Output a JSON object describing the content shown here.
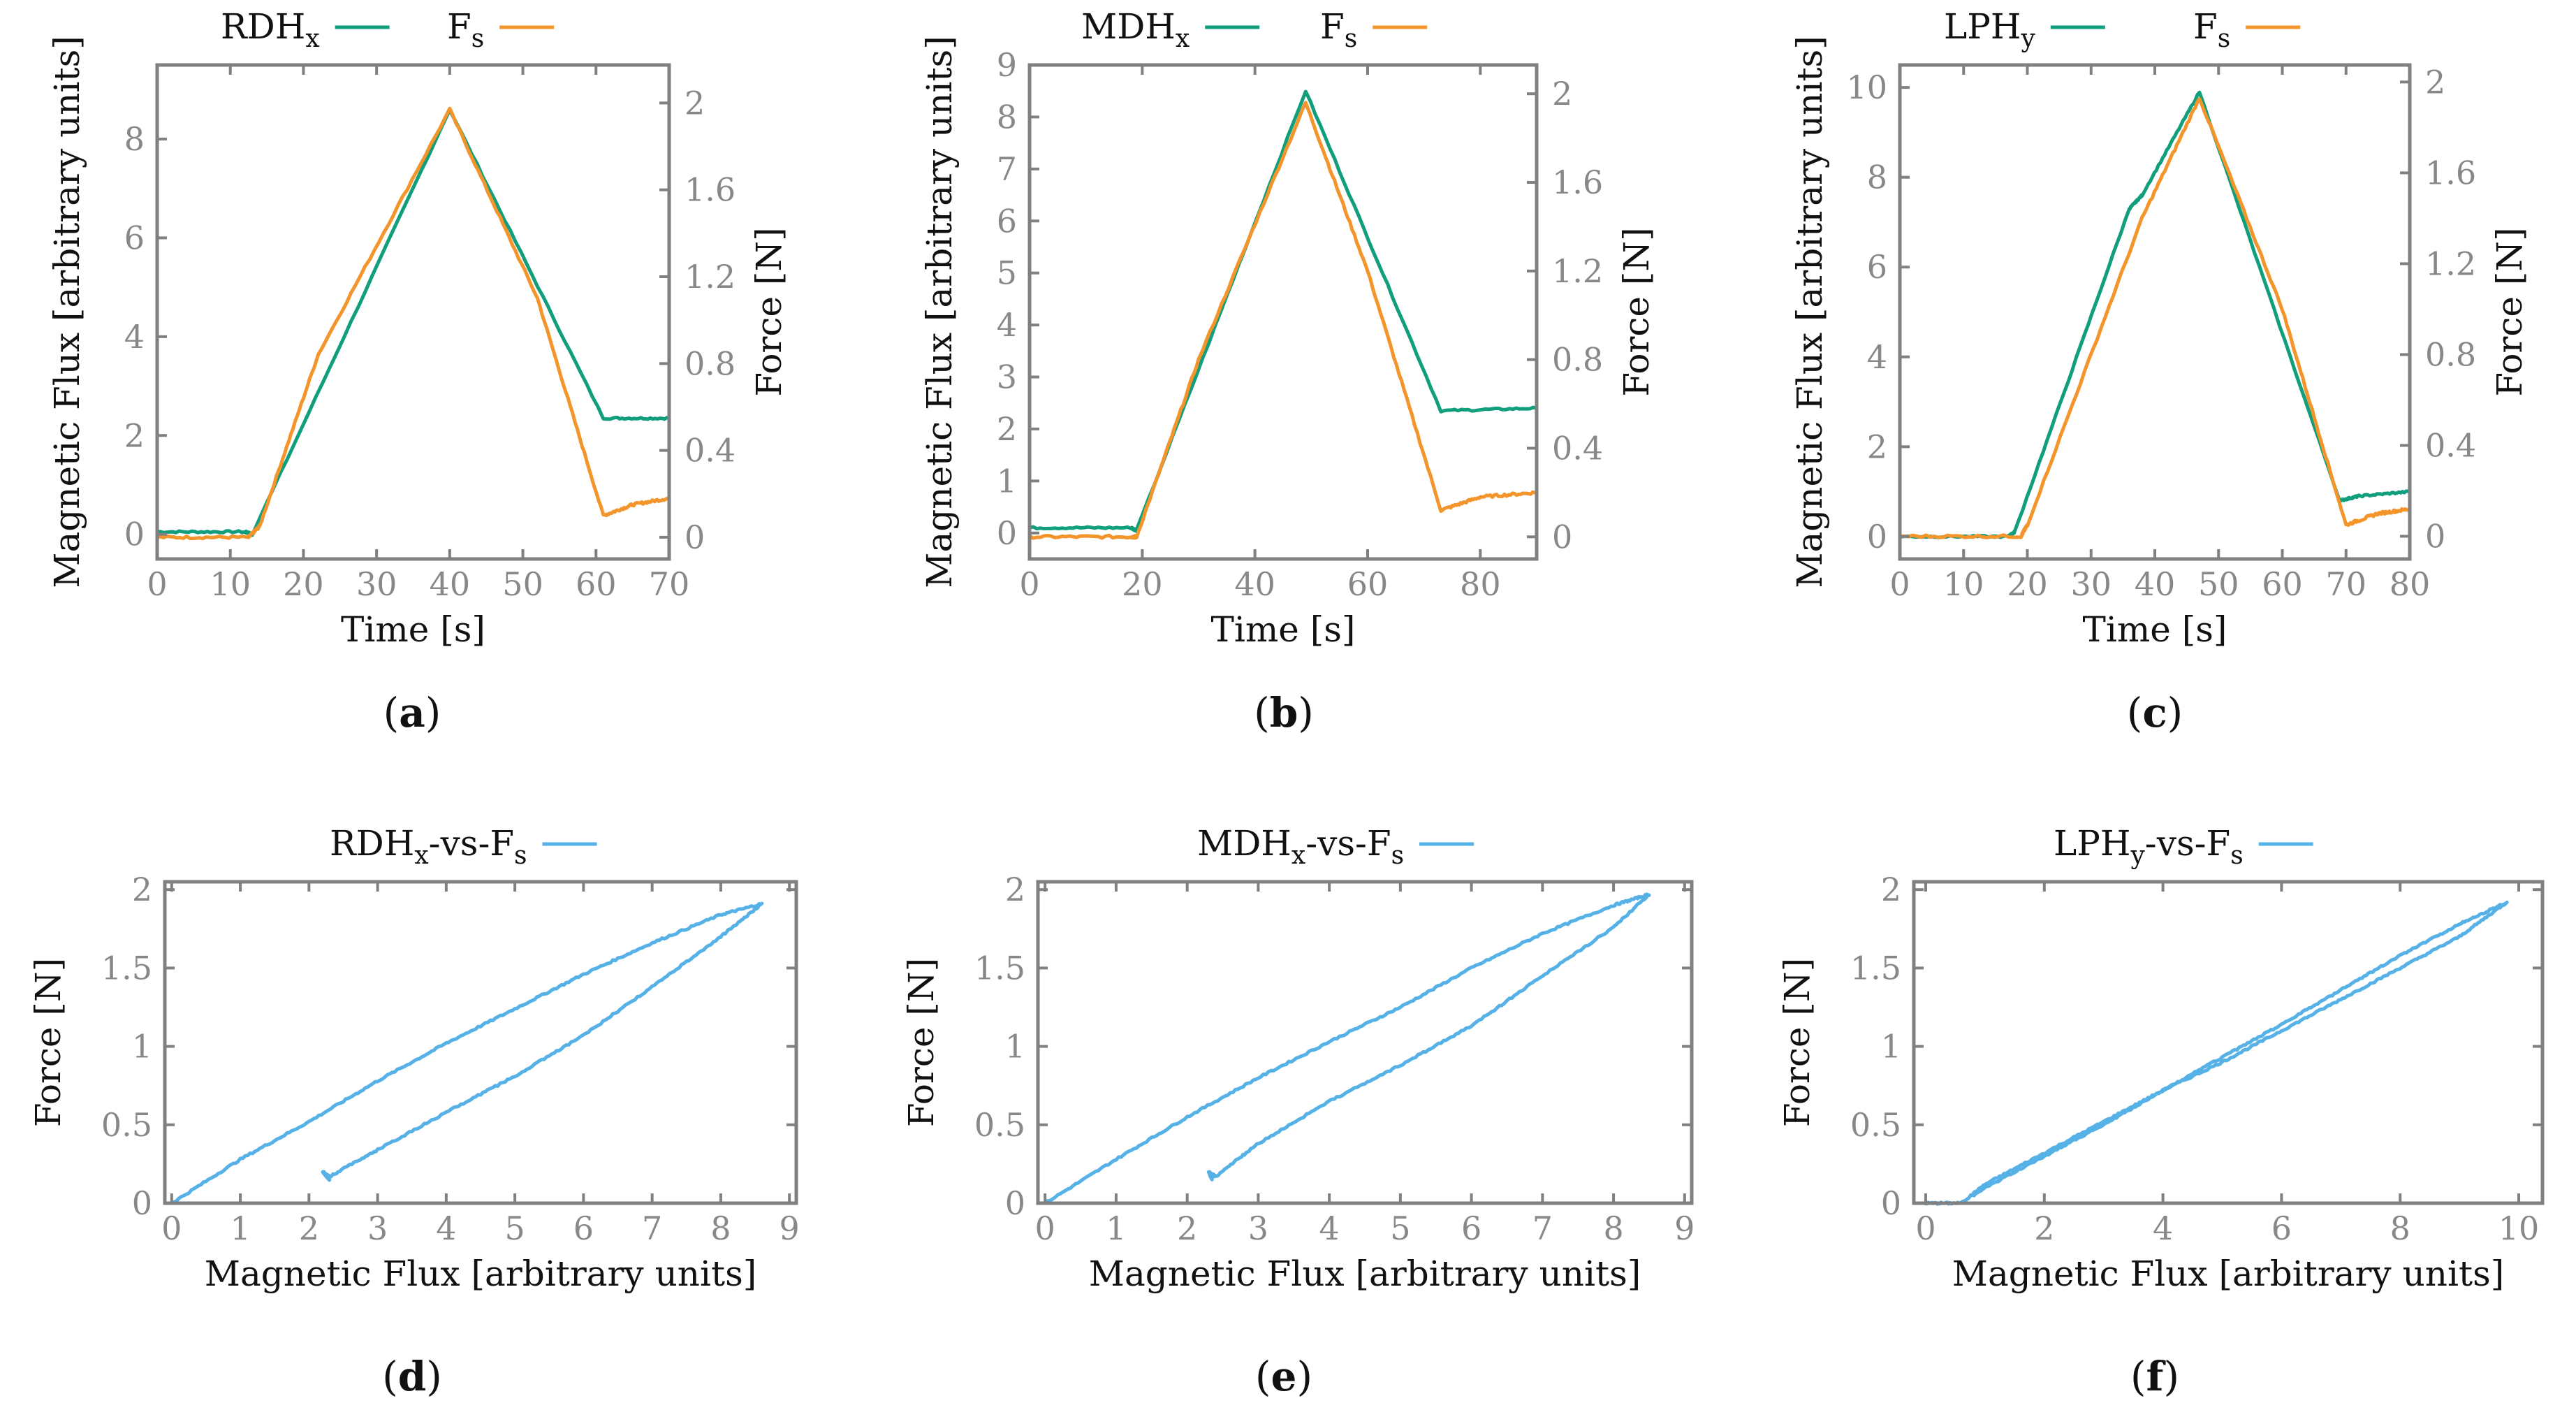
{
  "colors": {
    "green": "#119e7c",
    "orange": "#f4952c",
    "blue": "#56b1e6"
  },
  "chart_data": [
    {
      "id": "a",
      "type": "line",
      "caption": "(a)",
      "xlabel": "Time [s]",
      "ylabel": "Magnetic Flux [arbitrary units]",
      "y2label": "Force [N]",
      "xlim": [
        0,
        70
      ],
      "ylim": [
        -0.5,
        9.5
      ],
      "y2lim": [
        -0.1,
        2.175
      ],
      "xticks": [
        0,
        10,
        20,
        30,
        40,
        50,
        60,
        70
      ],
      "yticks": [
        0,
        2,
        4,
        6,
        8
      ],
      "y2ticks": [
        0,
        0.4,
        0.8,
        1.2,
        1.6,
        2
      ],
      "legend": [
        {
          "base": "RDH",
          "sub": "x"
        },
        {
          "base": "F",
          "sub": "s"
        }
      ],
      "series": [
        {
          "name": "RDHx",
          "axis": "y",
          "color": "green",
          "x": [
            0,
            12,
            13,
            40,
            61,
            70
          ],
          "y": [
            0.05,
            0.05,
            0.0,
            8.6,
            2.35,
            2.35
          ]
        },
        {
          "name": "Fs",
          "axis": "y2",
          "color": "orange",
          "x": [
            0,
            12.5,
            14,
            22,
            40,
            52,
            61,
            65,
            70
          ],
          "y": [
            0.0,
            0.0,
            0.05,
            0.84,
            1.97,
            1.1,
            0.1,
            0.15,
            0.18
          ]
        }
      ]
    },
    {
      "id": "b",
      "type": "line",
      "caption": "(b)",
      "xlabel": "Time [s]",
      "ylabel": "Magnetic Flux [arbitrary units]",
      "y2label": "Force [N]",
      "xlim": [
        0,
        90
      ],
      "ylim": [
        -0.5,
        9
      ],
      "y2lim": [
        -0.1,
        2.13
      ],
      "xticks": [
        0,
        20,
        40,
        60,
        80
      ],
      "yticks": [
        0,
        1,
        2,
        3,
        4,
        5,
        6,
        7,
        8,
        9
      ],
      "y2ticks": [
        0,
        0.4,
        0.8,
        1.2,
        1.6,
        2
      ],
      "legend": [
        {
          "base": "MDH",
          "sub": "x"
        },
        {
          "base": "F",
          "sub": "s"
        }
      ],
      "series": [
        {
          "name": "MDHx",
          "axis": "y",
          "color": "green",
          "x": [
            0,
            18,
            19,
            49,
            73,
            90
          ],
          "y": [
            0.1,
            0.1,
            0.05,
            8.5,
            2.35,
            2.4
          ]
        },
        {
          "name": "Fs",
          "axis": "y2",
          "color": "orange",
          "x": [
            0,
            18,
            19,
            30,
            49,
            60,
            73,
            80,
            90
          ],
          "y": [
            0.0,
            0.0,
            0.0,
            0.8,
            1.96,
            1.2,
            0.12,
            0.18,
            0.2
          ]
        }
      ]
    },
    {
      "id": "c",
      "type": "line",
      "caption": "(c)",
      "xlabel": "Time [s]",
      "ylabel": "Magnetic Flux [arbitrary units]",
      "y2label": "Force [N]",
      "xlim": [
        0,
        80
      ],
      "ylim": [
        -0.5,
        10.5
      ],
      "y2lim": [
        -0.1,
        2.075
      ],
      "xticks": [
        0,
        10,
        20,
        30,
        40,
        50,
        60,
        70,
        80
      ],
      "yticks": [
        0,
        2,
        4,
        6,
        8,
        10
      ],
      "y2ticks": [
        0,
        0.4,
        0.8,
        1.2,
        1.6,
        2
      ],
      "legend": [
        {
          "base": "LPH",
          "sub": "y"
        },
        {
          "base": "F",
          "sub": "s"
        }
      ],
      "series": [
        {
          "name": "LPHy",
          "axis": "y",
          "color": "green",
          "x": [
            0,
            17,
            18,
            36,
            38,
            47,
            69,
            72,
            80
          ],
          "y": [
            0.0,
            0.0,
            0.1,
            7.3,
            7.6,
            9.9,
            0.8,
            0.9,
            1.0
          ]
        },
        {
          "name": "Fs",
          "axis": "y2",
          "color": "orange",
          "x": [
            0,
            19,
            20,
            38,
            47,
            60,
            70,
            75,
            80
          ],
          "y": [
            0.0,
            0.0,
            0.05,
            1.4,
            1.93,
            1.0,
            0.05,
            0.1,
            0.12
          ]
        }
      ]
    },
    {
      "id": "d",
      "type": "line",
      "caption": "(d)",
      "xlabel": "Magnetic Flux [arbitrary units]",
      "ylabel": "Force [N]",
      "xlim": [
        -0.1,
        9.1
      ],
      "ylim": [
        0,
        2.05
      ],
      "xticks": [
        0,
        1,
        2,
        3,
        4,
        5,
        6,
        7,
        8,
        9
      ],
      "yticks": [
        0,
        0.5,
        1,
        1.5,
        2
      ],
      "legend": [
        {
          "base": "RDH",
          "sub": "x",
          "rest": "-vs-F",
          "sub2": "s"
        }
      ],
      "series": [
        {
          "name": "RDHx-vs-Fs",
          "color": "blue",
          "x": [
            0,
            1,
            2,
            3,
            4,
            5,
            6,
            7,
            8,
            8.6,
            8,
            7,
            6,
            5,
            4,
            3,
            2.3,
            2.2,
            2.3
          ],
          "y": [
            0,
            0.28,
            0.52,
            0.78,
            1.02,
            1.24,
            1.46,
            1.66,
            1.84,
            1.91,
            1.7,
            1.38,
            1.07,
            0.81,
            0.58,
            0.34,
            0.17,
            0.2,
            0.15
          ]
        }
      ]
    },
    {
      "id": "e",
      "type": "line",
      "caption": "(e)",
      "xlabel": "Magnetic Flux [arbitrary units]",
      "ylabel": "Force [N]",
      "xlim": [
        -0.1,
        9.1
      ],
      "ylim": [
        0,
        2.05
      ],
      "xticks": [
        0,
        1,
        2,
        3,
        4,
        5,
        6,
        7,
        8,
        9
      ],
      "yticks": [
        0,
        0.5,
        1,
        1.5,
        2
      ],
      "legend": [
        {
          "base": "MDH",
          "sub": "x",
          "rest": "-vs-F",
          "sub2": "s"
        }
      ],
      "series": [
        {
          "name": "MDHx-vs-Fs",
          "color": "blue",
          "x": [
            0,
            1,
            2,
            3,
            4,
            5,
            6,
            7,
            8,
            8.5,
            8,
            7,
            6,
            5,
            4,
            3,
            2.4,
            2.3,
            2.35
          ],
          "y": [
            0,
            0.28,
            0.55,
            0.8,
            1.03,
            1.25,
            1.5,
            1.72,
            1.9,
            1.97,
            1.76,
            1.45,
            1.13,
            0.88,
            0.65,
            0.38,
            0.17,
            0.2,
            0.15
          ]
        }
      ]
    },
    {
      "id": "f",
      "type": "line",
      "caption": "(f)",
      "xlabel": "Magnetic Flux [arbitrary units]",
      "ylabel": "Force [N]",
      "xlim": [
        -0.2,
        10.4
      ],
      "ylim": [
        0,
        2.05
      ],
      "xticks": [
        0,
        2,
        4,
        6,
        8,
        10
      ],
      "yticks": [
        0,
        0.5,
        1,
        1.5,
        2
      ],
      "legend": [
        {
          "base": "LPH",
          "sub": "y",
          "rest": "-vs-F",
          "sub2": "s"
        }
      ],
      "series": [
        {
          "name": "LPHy-vs-Fs",
          "color": "blue",
          "x": [
            0,
            0.6,
            1,
            2,
            3,
            4,
            5,
            6,
            7,
            8,
            9,
            9.8,
            9,
            8,
            7,
            6,
            5,
            4,
            3,
            2,
            1,
            0.8
          ],
          "y": [
            0,
            0,
            0.12,
            0.32,
            0.52,
            0.72,
            0.9,
            1.1,
            1.3,
            1.5,
            1.7,
            1.92,
            1.78,
            1.58,
            1.36,
            1.14,
            0.93,
            0.72,
            0.5,
            0.3,
            0.1,
            0.05
          ]
        }
      ]
    }
  ]
}
